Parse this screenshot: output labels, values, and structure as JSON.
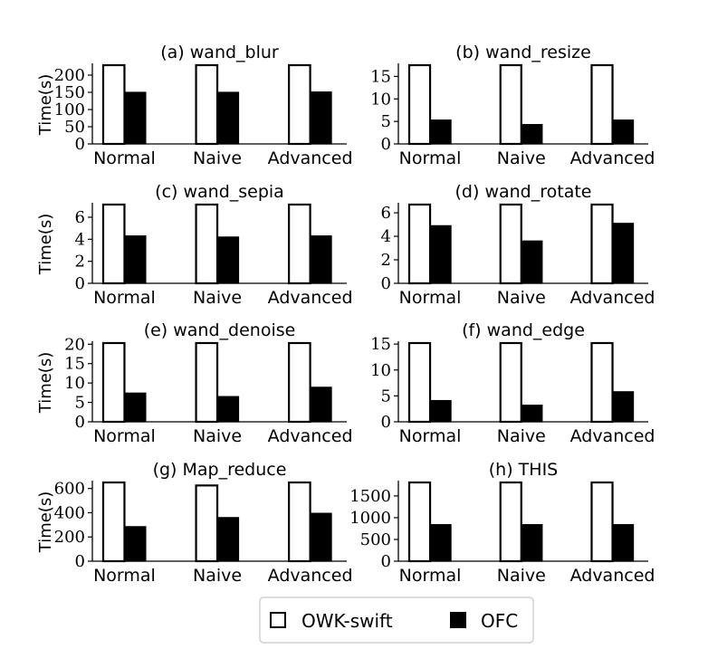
{
  "legend": [
    {
      "label": "OWK-swift",
      "fill": "#ffffff",
      "stroke": "#000000"
    },
    {
      "label": "OFC",
      "fill": "#000000",
      "stroke": "#000000"
    }
  ],
  "colors": {
    "owk_fill": "#ffffff",
    "ofc_fill": "#000000",
    "axis": "#000000"
  },
  "chart_data": [
    {
      "type": "bar",
      "title": "(a) wand_blur",
      "ylabel": "Time(s)",
      "categories": [
        "Normal",
        "Naive",
        "Advanced"
      ],
      "series": [
        {
          "name": "OWK-swift",
          "values": [
            229,
            229,
            229
          ]
        },
        {
          "name": "OFC",
          "values": [
            150,
            150,
            151
          ]
        }
      ],
      "ylim": [
        0,
        229
      ],
      "yticks": [
        0,
        50,
        100,
        150,
        200
      ]
    },
    {
      "type": "bar",
      "title": "(b) wand_resize",
      "ylabel": "",
      "categories": [
        "Normal",
        "Naive",
        "Advanced"
      ],
      "series": [
        {
          "name": "OWK-swift",
          "values": [
            17.5,
            17.5,
            17.5
          ]
        },
        {
          "name": "OFC",
          "values": [
            5.3,
            4.3,
            5.3
          ]
        }
      ],
      "ylim": [
        0,
        17.5
      ],
      "yticks": [
        0,
        5,
        10,
        15
      ]
    },
    {
      "type": "bar",
      "title": "(c) wand_sepia",
      "ylabel": "Time(s)",
      "categories": [
        "Normal",
        "Naive",
        "Advanced"
      ],
      "series": [
        {
          "name": "OWK-swift",
          "values": [
            7.15,
            7.15,
            7.15
          ]
        },
        {
          "name": "OFC",
          "values": [
            4.3,
            4.2,
            4.3
          ]
        }
      ],
      "ylim": [
        0,
        7.15
      ],
      "yticks": [
        0,
        2,
        4,
        6
      ]
    },
    {
      "type": "bar",
      "title": "(d) wand_rotate",
      "ylabel": "",
      "categories": [
        "Normal",
        "Naive",
        "Advanced"
      ],
      "series": [
        {
          "name": "OWK-swift",
          "values": [
            6.7,
            6.7,
            6.7
          ]
        },
        {
          "name": "OFC",
          "values": [
            4.9,
            3.6,
            5.1
          ]
        }
      ],
      "ylim": [
        0,
        6.7
      ],
      "yticks": [
        0,
        2,
        4,
        6
      ]
    },
    {
      "type": "bar",
      "title": "(e) wand_denoise",
      "ylabel": "Time(s)",
      "categories": [
        "Normal",
        "Naive",
        "Advanced"
      ],
      "series": [
        {
          "name": "OWK-swift",
          "values": [
            20.3,
            20.3,
            20.3
          ]
        },
        {
          "name": "OFC",
          "values": [
            7.4,
            6.5,
            8.9
          ]
        }
      ],
      "ylim": [
        0,
        20.3
      ],
      "yticks": [
        0,
        5,
        10,
        15,
        20
      ]
    },
    {
      "type": "bar",
      "title": "(f) wand_edge",
      "ylabel": "",
      "categories": [
        "Normal",
        "Naive",
        "Advanced"
      ],
      "series": [
        {
          "name": "OWK-swift",
          "values": [
            15.2,
            15.2,
            15.2
          ]
        },
        {
          "name": "OFC",
          "values": [
            4.1,
            3.2,
            5.8
          ]
        }
      ],
      "ylim": [
        0,
        15.2
      ],
      "yticks": [
        0,
        5,
        10,
        15
      ]
    },
    {
      "type": "bar",
      "title": "(g) Map_reduce",
      "ylabel": "Time(s)",
      "categories": [
        "Normal",
        "Naive",
        "Advanced"
      ],
      "series": [
        {
          "name": "OWK-swift",
          "values": [
            650,
            625,
            650
          ]
        },
        {
          "name": "OFC",
          "values": [
            285,
            360,
            395
          ]
        }
      ],
      "ylim": [
        0,
        650
      ],
      "yticks": [
        0,
        200,
        400,
        600
      ]
    },
    {
      "type": "bar",
      "title": "(h) THIS",
      "ylabel": "",
      "categories": [
        "Normal",
        "Naive",
        "Advanced"
      ],
      "series": [
        {
          "name": "OWK-swift",
          "values": [
            1810,
            1810,
            1810
          ]
        },
        {
          "name": "OFC",
          "values": [
            840,
            840,
            840
          ]
        }
      ],
      "ylim": [
        0,
        1810
      ],
      "yticks": [
        0,
        500,
        1000,
        1500
      ]
    }
  ]
}
